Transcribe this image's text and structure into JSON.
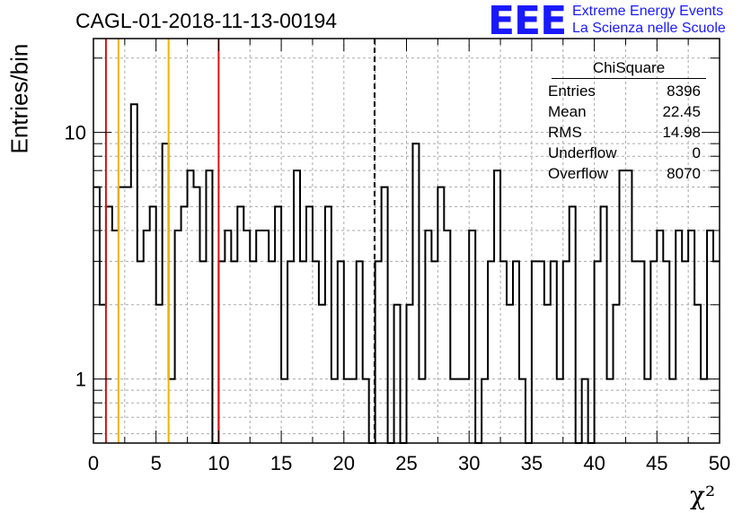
{
  "title": "CAGL-01-2018-11-13-00194",
  "logo": {
    "mark": "EEE",
    "line1": "Extreme Energy Events",
    "line2": "La Scienza nelle Scuole"
  },
  "stats": {
    "header": "ChiSquare",
    "rows": [
      {
        "label": "Entries",
        "value": "8396"
      },
      {
        "label": "Mean",
        "value": "22.45"
      },
      {
        "label": "RMS",
        "value": "14.98"
      },
      {
        "label": "Underflow",
        "value": "0"
      },
      {
        "label": "Overflow",
        "value": "8070"
      }
    ]
  },
  "chart_data": {
    "type": "histogram",
    "title": "CAGL-01-2018-11-13-00194",
    "xlabel": "χ²",
    "ylabel": "Entries/bin",
    "xlim": [
      0,
      50
    ],
    "ylim": [
      0.55,
      24
    ],
    "yscale": "log",
    "bin_width": 0.5,
    "grid": true,
    "xticks": [
      "0",
      "5",
      "10",
      "15",
      "20",
      "25",
      "30",
      "35",
      "40",
      "45",
      "50"
    ],
    "yticks": [
      "1",
      "10"
    ],
    "counts": [
      6,
      2,
      5,
      4,
      6,
      6,
      13,
      3,
      4,
      5,
      2,
      9,
      1,
      4,
      5,
      7,
      6,
      3,
      7,
      0,
      3,
      4,
      3,
      5,
      4,
      3,
      4,
      4,
      3,
      5,
      1,
      3,
      7,
      3,
      5,
      3,
      2,
      5,
      1,
      3,
      1,
      1,
      3,
      1,
      0,
      3,
      6,
      0,
      2,
      0,
      2,
      9,
      1,
      4,
      3,
      6,
      4,
      1,
      1,
      1,
      4,
      0,
      1,
      3,
      7,
      3,
      2,
      3,
      1,
      0,
      3,
      3,
      2,
      3,
      1,
      3,
      5,
      0,
      1,
      0,
      3,
      5,
      1,
      2,
      7,
      7,
      3,
      3,
      1,
      3,
      4,
      3,
      1,
      4,
      3,
      4,
      2,
      1,
      4,
      3
    ],
    "vlines": [
      {
        "x": 1,
        "color": "#dd1111",
        "style": "solid"
      },
      {
        "x": 2,
        "color": "#f0b400",
        "style": "solid"
      },
      {
        "x": 6,
        "color": "#f0b400",
        "style": "solid"
      },
      {
        "x": 10,
        "color": "#dd1111",
        "style": "solid"
      },
      {
        "x": 22.45,
        "color": "#000000",
        "style": "dashed"
      }
    ],
    "legend": "top-right stats box"
  }
}
